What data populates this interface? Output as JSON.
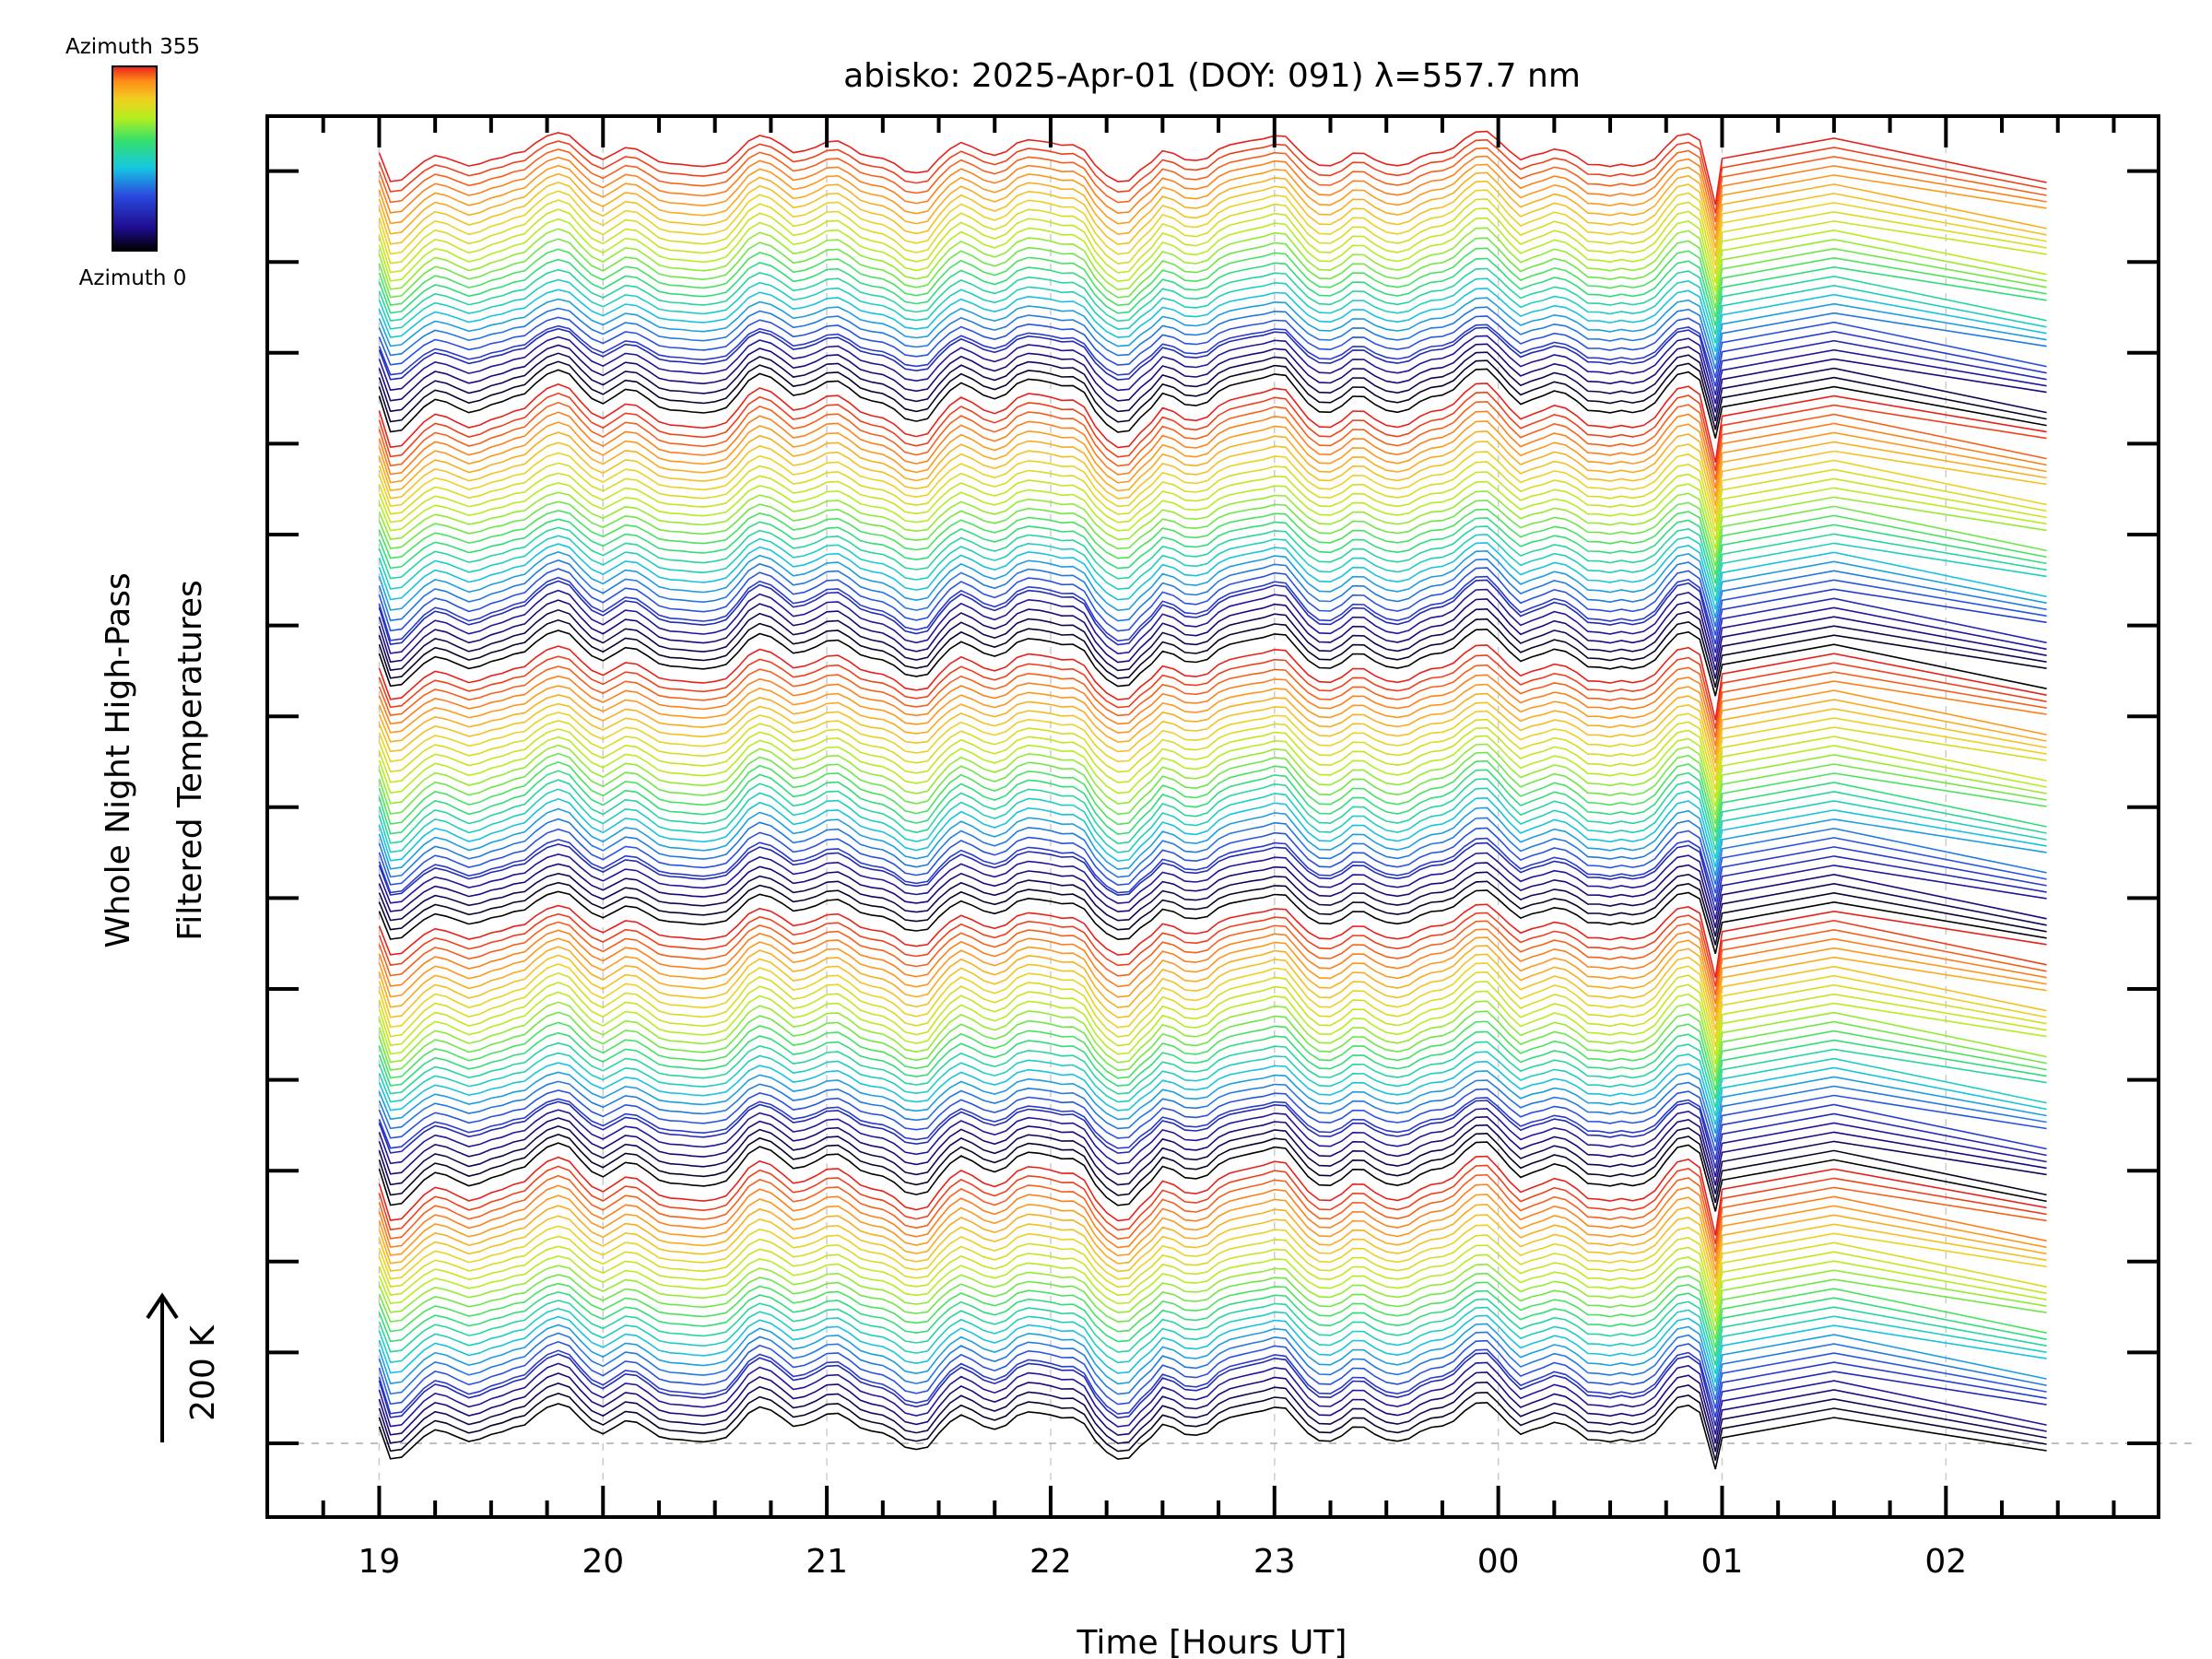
{
  "chart_data": {
    "type": "line",
    "title": "abisko: 2025-Apr-01 (DOY: 091) λ=557.7 nm",
    "xlabel": "Time [Hours UT]",
    "ylabel_line1": "Whole Night High-Pass",
    "ylabel_line2": "Filtered Temperatures",
    "scale_label": "200 K",
    "x_ticks": [
      "19",
      "20",
      "21",
      "22",
      "23",
      "00",
      "01",
      "02"
    ],
    "x_tick_values": [
      19,
      20,
      21,
      22,
      23,
      24,
      25,
      26
    ],
    "xlim": [
      18.5,
      26.95
    ],
    "colorbar": {
      "top_label": "Azimuth 355",
      "bottom_label": "Azimuth 0"
    },
    "series_description": "Stacked time series, one per azimuth (0 to 355 deg in 5 deg steps), colored by azimuth",
    "azimuth_step": 5,
    "azimuth_max": 355,
    "time_start": 19.0,
    "time_end": 26.45,
    "gap_after": 24.97,
    "colormap": [
      "#000000",
      "#1e0a8c",
      "#2a4adf",
      "#15c8e0",
      "#36e06a",
      "#b4ee1e",
      "#f0d020",
      "#ff8c1a",
      "#e8201a"
    ],
    "grid": true
  }
}
